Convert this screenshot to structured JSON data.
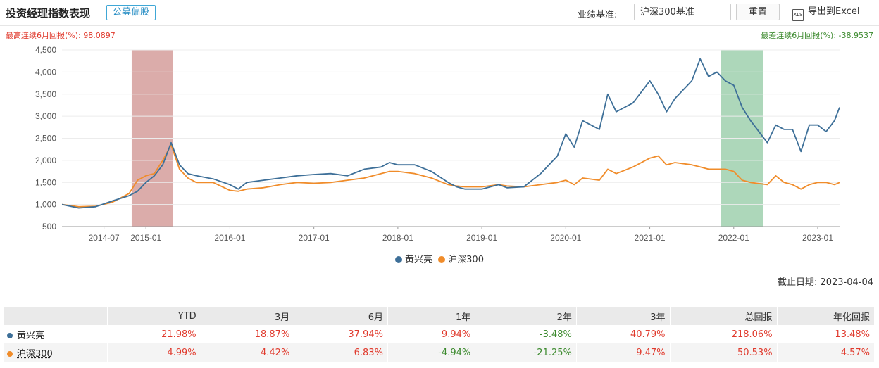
{
  "header": {
    "title": "投资经理指数表现",
    "tag": "公募偏股",
    "benchmark_label": "业绩基准:",
    "benchmark_value": "沪深300基准",
    "reset_label": "重置",
    "export_icon_text": "XLS",
    "export_label": "导出到Excel"
  },
  "highlights": {
    "max": "最高连续6月回报(%):  98.0897",
    "min": "最差连续6月回报(%):  -38.9537"
  },
  "chart_data": {
    "type": "line",
    "ylim": [
      500,
      4500
    ],
    "y_ticks": [
      "4,500",
      "4,000",
      "3,500",
      "3,000",
      "2,500",
      "2,000",
      "1,500",
      "1,000",
      "500"
    ],
    "y_tick_values": [
      4500,
      4000,
      3500,
      3000,
      2500,
      2000,
      1500,
      1000,
      500
    ],
    "x_ticks": [
      "2014-07",
      "2015-01",
      "2016-01",
      "2017-01",
      "2018-01",
      "2019-01",
      "2020-01",
      "2021-01",
      "2022-01",
      "2023-01"
    ],
    "x_tick_values": [
      2014.5,
      2015.0,
      2016.0,
      2017.0,
      2018.0,
      2019.0,
      2020.0,
      2021.0,
      2022.0,
      2023.0
    ],
    "xlim": [
      2014.0,
      2023.26
    ],
    "highlight_max": [
      2014.83,
      2015.32
    ],
    "highlight_min": [
      2021.85,
      2022.35
    ],
    "colors": {
      "manager": "#3d6f98",
      "benchmark": "#f08c2a",
      "max_band": "#d9a8a5",
      "min_band": "#a9d5b6"
    },
    "series": [
      {
        "name": "黄兴亮",
        "x": [
          2014.0,
          2014.2,
          2014.4,
          2014.6,
          2014.8,
          2014.9,
          2015.0,
          2015.1,
          2015.2,
          2015.3,
          2015.4,
          2015.5,
          2015.6,
          2015.8,
          2016.0,
          2016.1,
          2016.2,
          2016.4,
          2016.6,
          2016.8,
          2017.0,
          2017.2,
          2017.4,
          2017.6,
          2017.8,
          2017.9,
          2018.0,
          2018.2,
          2018.4,
          2018.6,
          2018.7,
          2018.8,
          2019.0,
          2019.2,
          2019.3,
          2019.5,
          2019.7,
          2019.9,
          2020.0,
          2020.1,
          2020.2,
          2020.4,
          2020.5,
          2020.6,
          2020.8,
          2021.0,
          2021.1,
          2021.2,
          2021.3,
          2021.5,
          2021.6,
          2021.7,
          2021.8,
          2021.9,
          2022.0,
          2022.1,
          2022.2,
          2022.4,
          2022.5,
          2022.6,
          2022.7,
          2022.8,
          2022.9,
          2023.0,
          2023.1,
          2023.2,
          2023.26
        ],
        "y": [
          1000,
          920,
          950,
          1080,
          1200,
          1300,
          1500,
          1650,
          1900,
          2400,
          1900,
          1700,
          1650,
          1580,
          1450,
          1350,
          1500,
          1550,
          1600,
          1650,
          1680,
          1700,
          1650,
          1800,
          1850,
          1950,
          1900,
          1900,
          1750,
          1500,
          1400,
          1350,
          1350,
          1450,
          1380,
          1400,
          1700,
          2100,
          2600,
          2300,
          2900,
          2700,
          3500,
          3100,
          3300,
          3800,
          3500,
          3100,
          3400,
          3800,
          4300,
          3900,
          4000,
          3800,
          3700,
          3200,
          2900,
          2400,
          2800,
          2700,
          2700,
          2200,
          2800,
          2800,
          2650,
          2900,
          3200
        ]
      },
      {
        "name": "沪深300",
        "x": [
          2014.0,
          2014.2,
          2014.4,
          2014.6,
          2014.8,
          2014.9,
          2015.0,
          2015.1,
          2015.2,
          2015.3,
          2015.4,
          2015.5,
          2015.6,
          2015.8,
          2016.0,
          2016.1,
          2016.2,
          2016.4,
          2016.6,
          2016.8,
          2017.0,
          2017.2,
          2017.4,
          2017.6,
          2017.8,
          2017.9,
          2018.0,
          2018.2,
          2018.4,
          2018.6,
          2018.7,
          2018.8,
          2019.0,
          2019.2,
          2019.3,
          2019.5,
          2019.7,
          2019.9,
          2020.0,
          2020.1,
          2020.2,
          2020.4,
          2020.5,
          2020.6,
          2020.8,
          2021.0,
          2021.1,
          2021.2,
          2021.3,
          2021.5,
          2021.6,
          2021.7,
          2021.8,
          2021.9,
          2022.0,
          2022.1,
          2022.2,
          2022.4,
          2022.5,
          2022.6,
          2022.7,
          2022.8,
          2022.9,
          2023.0,
          2023.1,
          2023.2,
          2023.26
        ],
        "y": [
          1000,
          950,
          960,
          1050,
          1250,
          1550,
          1650,
          1700,
          2000,
          2350,
          1800,
          1600,
          1500,
          1500,
          1320,
          1300,
          1350,
          1380,
          1450,
          1500,
          1480,
          1500,
          1550,
          1600,
          1700,
          1750,
          1750,
          1700,
          1600,
          1450,
          1420,
          1400,
          1400,
          1450,
          1420,
          1400,
          1450,
          1500,
          1550,
          1450,
          1600,
          1550,
          1800,
          1700,
          1850,
          2050,
          2100,
          1900,
          1950,
          1900,
          1850,
          1800,
          1800,
          1800,
          1750,
          1550,
          1500,
          1450,
          1650,
          1500,
          1450,
          1350,
          1450,
          1500,
          1500,
          1450,
          1500
        ]
      }
    ]
  },
  "legend": [
    {
      "label": "黄兴亮",
      "color": "#3d6f98"
    },
    {
      "label": "沪深300",
      "color": "#f08c2a"
    }
  ],
  "as_of": "截止日期:  2023-04-04",
  "table": {
    "headers": [
      "",
      "YTD",
      "3月",
      "6月",
      "1年",
      "2年",
      "3年",
      "总回报",
      "年化回报"
    ],
    "rows": [
      {
        "name": "黄兴亮",
        "color": "#3d6f98",
        "values": [
          "21.98%",
          "18.87%",
          "37.94%",
          "9.94%",
          "-3.48%",
          "40.79%",
          "218.06%",
          "13.48%"
        ]
      },
      {
        "name": "沪深300",
        "color": "#f08c2a",
        "values": [
          "4.99%",
          "4.42%",
          "6.83%",
          "-4.94%",
          "-21.25%",
          "9.47%",
          "50.53%",
          "4.57%"
        ]
      }
    ]
  }
}
